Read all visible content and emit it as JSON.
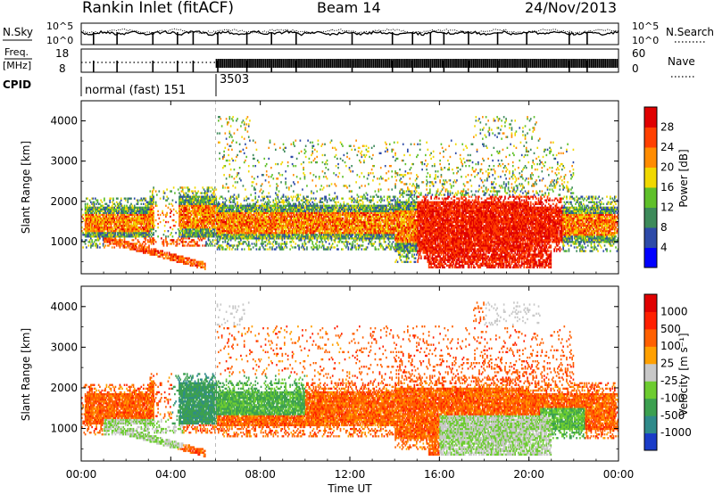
{
  "header": {
    "title": "Rankin Inlet (fitACF)",
    "beam": "Beam 14",
    "date": "24/Nov/2013"
  },
  "noise_panel": {
    "left_label": "N.Sky",
    "right_label": "N.Search",
    "left_ticks": [
      "10^5",
      "10^0"
    ],
    "right_ticks": [
      "10^5",
      "10^0"
    ]
  },
  "freq_panel": {
    "left_label_1": "Freq.",
    "left_label_2": "[MHz]",
    "right_label": "Nave",
    "left_ticks": [
      "18",
      "8"
    ],
    "right_ticks": [
      "60",
      "0"
    ]
  },
  "cpid_panel": {
    "label": "CPID",
    "mode_1": "normal (fast) 151",
    "mode_2": "3503"
  },
  "chart_data": [
    {
      "type": "heatmap",
      "name": "power",
      "ylabel": "Slant Range [km]",
      "yticks": [
        "1000",
        "2000",
        "3000",
        "4000"
      ],
      "ylim": [
        200,
        4500
      ],
      "xlim_hours": [
        0,
        24
      ],
      "colorbar": {
        "label": "Power [dB]",
        "ticks": [
          "4",
          "8",
          "12",
          "16",
          "20",
          "24",
          "28"
        ],
        "colors": [
          "#0000ff",
          "#2d4aa8",
          "#3d8a5a",
          "#5fc02a",
          "#f0d800",
          "#ff8c00",
          "#ff4000",
          "#e00000"
        ]
      }
    },
    {
      "type": "heatmap",
      "name": "velocity",
      "ylabel": "Slant Range [km]",
      "yticks": [
        "1000",
        "2000",
        "3000",
        "4000"
      ],
      "ylim": [
        200,
        4500
      ],
      "xlim_hours": [
        0,
        24
      ],
      "colorbar": {
        "label": "Velocity [m s⁻¹]",
        "ticks": [
          "1000",
          "500",
          "100",
          "25",
          "-25",
          "-100",
          "-500",
          "-1000"
        ],
        "colors": [
          "#1a3cc8",
          "#2f8a8a",
          "#3ca050",
          "#6dcc30",
          "#c8c8c8",
          "#ffa000",
          "#ff6000",
          "#ff2000",
          "#e00000"
        ]
      }
    }
  ],
  "xaxis": {
    "ticks": [
      "00:00",
      "04:00",
      "08:00",
      "12:00",
      "16:00",
      "20:00",
      "00:00"
    ],
    "label": "Time UT"
  }
}
